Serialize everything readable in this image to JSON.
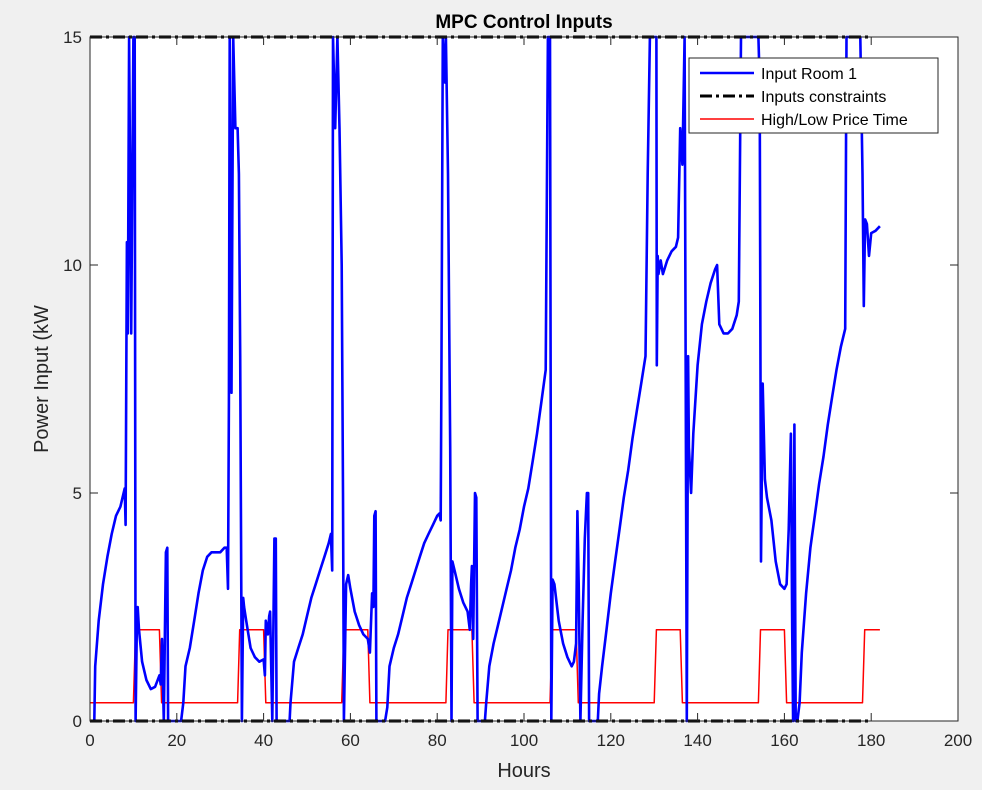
{
  "chart_data": {
    "type": "line",
    "title": "MPC Control Inputs",
    "xlabel": "Hours",
    "ylabel": "Power Input (kW",
    "xlim": [
      0,
      200
    ],
    "ylim": [
      0,
      15
    ],
    "xticks": [
      0,
      20,
      40,
      60,
      80,
      100,
      120,
      140,
      160,
      180,
      200
    ],
    "yticks": [
      0,
      5,
      10,
      15
    ],
    "legend_position": "top-right",
    "grid": false,
    "series": [
      {
        "name": "Input Room 1",
        "style": "solid-thick",
        "color": "#0000ff",
        "points": [
          [
            1,
            0
          ],
          [
            1.2,
            1.2
          ],
          [
            2,
            2.2
          ],
          [
            3,
            3.0
          ],
          [
            4,
            3.6
          ],
          [
            5,
            4.1
          ],
          [
            6,
            4.5
          ],
          [
            7,
            4.7
          ],
          [
            8,
            5.1
          ],
          [
            8.2,
            4.3
          ],
          [
            8.5,
            10.5
          ],
          [
            8.7,
            8.5
          ],
          [
            9,
            15
          ],
          [
            9.5,
            8.5
          ],
          [
            10,
            15
          ],
          [
            10.3,
            15
          ],
          [
            10.5,
            0
          ],
          [
            10.8,
            2.2
          ],
          [
            11,
            2.5
          ],
          [
            11.3,
            2.0
          ],
          [
            12,
            1.3
          ],
          [
            13,
            0.9
          ],
          [
            14,
            0.7
          ],
          [
            15,
            0.75
          ],
          [
            16,
            1.0
          ],
          [
            16.3,
            0.8
          ],
          [
            16.6,
            1.8
          ],
          [
            17,
            0
          ],
          [
            17.5,
            3.7
          ],
          [
            17.8,
            3.8
          ],
          [
            18,
            0
          ],
          [
            19,
            0
          ],
          [
            20,
            0
          ],
          [
            21,
            0
          ],
          [
            21.5,
            0.4
          ],
          [
            22,
            1.2
          ],
          [
            23,
            1.6
          ],
          [
            24,
            2.2
          ],
          [
            25,
            2.8
          ],
          [
            26,
            3.3
          ],
          [
            27,
            3.6
          ],
          [
            28,
            3.7
          ],
          [
            29,
            3.7
          ],
          [
            30,
            3.7
          ],
          [
            31,
            3.8
          ],
          [
            31.5,
            3.8
          ],
          [
            31.8,
            2.9
          ],
          [
            32,
            7.0
          ],
          [
            32.2,
            15
          ],
          [
            32.6,
            7.2
          ],
          [
            33,
            15
          ],
          [
            33.5,
            13
          ],
          [
            34,
            13
          ],
          [
            34.3,
            12
          ],
          [
            34.6,
            8
          ],
          [
            35,
            0
          ],
          [
            35.3,
            2.7
          ],
          [
            35.5,
            2.5
          ],
          [
            36,
            2.2
          ],
          [
            37,
            1.6
          ],
          [
            38,
            1.4
          ],
          [
            39,
            1.3
          ],
          [
            40,
            1.35
          ],
          [
            40.3,
            1.0
          ],
          [
            40.5,
            2.2
          ],
          [
            41,
            1.9
          ],
          [
            41.3,
            2.3
          ],
          [
            41.5,
            2.4
          ],
          [
            42,
            0
          ],
          [
            42.5,
            4.0
          ],
          [
            42.8,
            4.0
          ],
          [
            43,
            0
          ],
          [
            44,
            0
          ],
          [
            45,
            0
          ],
          [
            46,
            0
          ],
          [
            46.2,
            0.4
          ],
          [
            47,
            1.3
          ],
          [
            48,
            1.6
          ],
          [
            49,
            1.9
          ],
          [
            50,
            2.3
          ],
          [
            51,
            2.7
          ],
          [
            52,
            3.0
          ],
          [
            53,
            3.3
          ],
          [
            54,
            3.6
          ],
          [
            55,
            3.9
          ],
          [
            55.5,
            4.1
          ],
          [
            55.8,
            3.3
          ],
          [
            56,
            15
          ],
          [
            56.5,
            13
          ],
          [
            57,
            15
          ],
          [
            57.5,
            13
          ],
          [
            58,
            10
          ],
          [
            58.3,
            5
          ],
          [
            58.5,
            0
          ],
          [
            59,
            3.0
          ],
          [
            59.5,
            3.2
          ],
          [
            60,
            2.9
          ],
          [
            61,
            2.4
          ],
          [
            62,
            2.1
          ],
          [
            63,
            1.9
          ],
          [
            64,
            1.8
          ],
          [
            64.5,
            1.5
          ],
          [
            65,
            2.8
          ],
          [
            65.3,
            2.5
          ],
          [
            65.5,
            4.5
          ],
          [
            65.8,
            4.6
          ],
          [
            66,
            0
          ],
          [
            67,
            0
          ],
          [
            68,
            0
          ],
          [
            68.5,
            0.3
          ],
          [
            69,
            1.2
          ],
          [
            70,
            1.6
          ],
          [
            71,
            1.9
          ],
          [
            72,
            2.3
          ],
          [
            73,
            2.7
          ],
          [
            74,
            3.0
          ],
          [
            75,
            3.3
          ],
          [
            76,
            3.6
          ],
          [
            77,
            3.9
          ],
          [
            78,
            4.1
          ],
          [
            79,
            4.3
          ],
          [
            80,
            4.5
          ],
          [
            80.5,
            4.55
          ],
          [
            80.8,
            4.4
          ],
          [
            81,
            8
          ],
          [
            81.3,
            15
          ],
          [
            81.8,
            14
          ],
          [
            82,
            15
          ],
          [
            82.5,
            12
          ],
          [
            83,
            6
          ],
          [
            83.3,
            0
          ],
          [
            83.5,
            3.5
          ],
          [
            84,
            3.3
          ],
          [
            85,
            2.9
          ],
          [
            86,
            2.6
          ],
          [
            87,
            2.4
          ],
          [
            87.5,
            2.0
          ],
          [
            87.8,
            3.0
          ],
          [
            88,
            3.4
          ],
          [
            88.3,
            1.8
          ],
          [
            88.7,
            5.0
          ],
          [
            89,
            4.9
          ],
          [
            89.3,
            0
          ],
          [
            90,
            0
          ],
          [
            91,
            0
          ],
          [
            91.3,
            0.4
          ],
          [
            92,
            1.2
          ],
          [
            93,
            1.7
          ],
          [
            94,
            2.1
          ],
          [
            95,
            2.5
          ],
          [
            96,
            2.9
          ],
          [
            97,
            3.3
          ],
          [
            98,
            3.8
          ],
          [
            99,
            4.2
          ],
          [
            100,
            4.7
          ],
          [
            101,
            5.1
          ],
          [
            102,
            5.7
          ],
          [
            103,
            6.3
          ],
          [
            104,
            7.0
          ],
          [
            105,
            7.7
          ],
          [
            105.5,
            15
          ],
          [
            106,
            15
          ],
          [
            106.3,
            0
          ],
          [
            106.6,
            3.1
          ],
          [
            107,
            3.0
          ],
          [
            108,
            2.2
          ],
          [
            109,
            1.7
          ],
          [
            110,
            1.4
          ],
          [
            111,
            1.2
          ],
          [
            111.5,
            1.3
          ],
          [
            112,
            1.7
          ],
          [
            112.3,
            4.6
          ],
          [
            112.6,
            3.0
          ],
          [
            113,
            0
          ],
          [
            113.5,
            2.2
          ],
          [
            114,
            4.0
          ],
          [
            114.5,
            5.0
          ],
          [
            114.8,
            5.0
          ],
          [
            115,
            0
          ],
          [
            116,
            0
          ],
          [
            117,
            0
          ],
          [
            117.3,
            0.6
          ],
          [
            118,
            1.2
          ],
          [
            119,
            2.0
          ],
          [
            120,
            2.8
          ],
          [
            121,
            3.5
          ],
          [
            122,
            4.2
          ],
          [
            123,
            4.9
          ],
          [
            124,
            5.5
          ],
          [
            125,
            6.2
          ],
          [
            126,
            6.8
          ],
          [
            127,
            7.4
          ],
          [
            128,
            8.0
          ],
          [
            128.5,
            12
          ],
          [
            129,
            15
          ],
          [
            130,
            15
          ],
          [
            130.5,
            15
          ],
          [
            130.6,
            7.8
          ],
          [
            130.8,
            10.2
          ],
          [
            131,
            9.8
          ],
          [
            131.5,
            10.1
          ],
          [
            132,
            9.8
          ],
          [
            133,
            10.1
          ],
          [
            134,
            10.3
          ],
          [
            135,
            10.4
          ],
          [
            135.5,
            10.6
          ],
          [
            136,
            13
          ],
          [
            136.5,
            12.2
          ],
          [
            137,
            15
          ],
          [
            137.5,
            0
          ],
          [
            137.8,
            8
          ],
          [
            138,
            6.0
          ],
          [
            138.5,
            5.0
          ],
          [
            139,
            6.3
          ],
          [
            140,
            7.8
          ],
          [
            141,
            8.7
          ],
          [
            142,
            9.2
          ],
          [
            143,
            9.6
          ],
          [
            144,
            9.9
          ],
          [
            144.5,
            10.0
          ],
          [
            145,
            8.7
          ],
          [
            146,
            8.5
          ],
          [
            147,
            8.5
          ],
          [
            148,
            8.6
          ],
          [
            149,
            8.9
          ],
          [
            149.5,
            9.2
          ],
          [
            150,
            15
          ],
          [
            151,
            15
          ],
          [
            152,
            15
          ],
          [
            153,
            15
          ],
          [
            154,
            15
          ],
          [
            154.3,
            14
          ],
          [
            154.6,
            3.5
          ],
          [
            155,
            7.4
          ],
          [
            155.5,
            5.3
          ],
          [
            156,
            4.9
          ],
          [
            157,
            4.4
          ],
          [
            158,
            3.5
          ],
          [
            159,
            3.0
          ],
          [
            160,
            2.9
          ],
          [
            160.5,
            3.0
          ],
          [
            161,
            4.2
          ],
          [
            161.5,
            6.3
          ],
          [
            161.8,
            2.0
          ],
          [
            162,
            0
          ],
          [
            162.3,
            6.5
          ],
          [
            162.6,
            0
          ],
          [
            163,
            0
          ],
          [
            163.5,
            0.4
          ],
          [
            164,
            1.5
          ],
          [
            165,
            2.8
          ],
          [
            166,
            3.8
          ],
          [
            167,
            4.5
          ],
          [
            168,
            5.2
          ],
          [
            169,
            5.8
          ],
          [
            170,
            6.5
          ],
          [
            171,
            7.1
          ],
          [
            172,
            7.7
          ],
          [
            173,
            8.2
          ],
          [
            174,
            8.6
          ],
          [
            174.3,
            15
          ],
          [
            175,
            15
          ],
          [
            176,
            15
          ],
          [
            177,
            15
          ],
          [
            177.5,
            15
          ],
          [
            178,
            12
          ],
          [
            178.3,
            9.1
          ],
          [
            178.6,
            11.0
          ],
          [
            179,
            10.9
          ],
          [
            179.5,
            10.2
          ],
          [
            180,
            10.7
          ],
          [
            181,
            10.75
          ],
          [
            182,
            10.85
          ]
        ]
      },
      {
        "name": "Inputs constraints",
        "style": "dashdot-thick",
        "color": "#000000",
        "lines": [
          [
            [
              0,
              15
            ],
            [
              180,
              15
            ]
          ],
          [
            [
              0,
              0
            ],
            [
              180,
              0
            ]
          ]
        ]
      },
      {
        "name": "High/Low Price Time",
        "style": "solid-thin",
        "color": "#ff0000",
        "points": [
          [
            0,
            0.4
          ],
          [
            10,
            0.4
          ],
          [
            10.5,
            2
          ],
          [
            16,
            2
          ],
          [
            16.5,
            0.4
          ],
          [
            34,
            0.4
          ],
          [
            34.5,
            2
          ],
          [
            40,
            2
          ],
          [
            40.5,
            0.4
          ],
          [
            58,
            0.4
          ],
          [
            58.5,
            2
          ],
          [
            64,
            2
          ],
          [
            64.5,
            0.4
          ],
          [
            82,
            0.4
          ],
          [
            82.5,
            2
          ],
          [
            88,
            2
          ],
          [
            88.5,
            0.4
          ],
          [
            106,
            0.4
          ],
          [
            106.5,
            2
          ],
          [
            112,
            2
          ],
          [
            112.5,
            0.4
          ],
          [
            130,
            0.4
          ],
          [
            130.5,
            2
          ],
          [
            136,
            2
          ],
          [
            136.5,
            0.4
          ],
          [
            154,
            0.4
          ],
          [
            154.5,
            2
          ],
          [
            160,
            2
          ],
          [
            160.5,
            0.4
          ],
          [
            178,
            0.4
          ],
          [
            178.5,
            2
          ],
          [
            182,
            2
          ]
        ]
      }
    ]
  }
}
